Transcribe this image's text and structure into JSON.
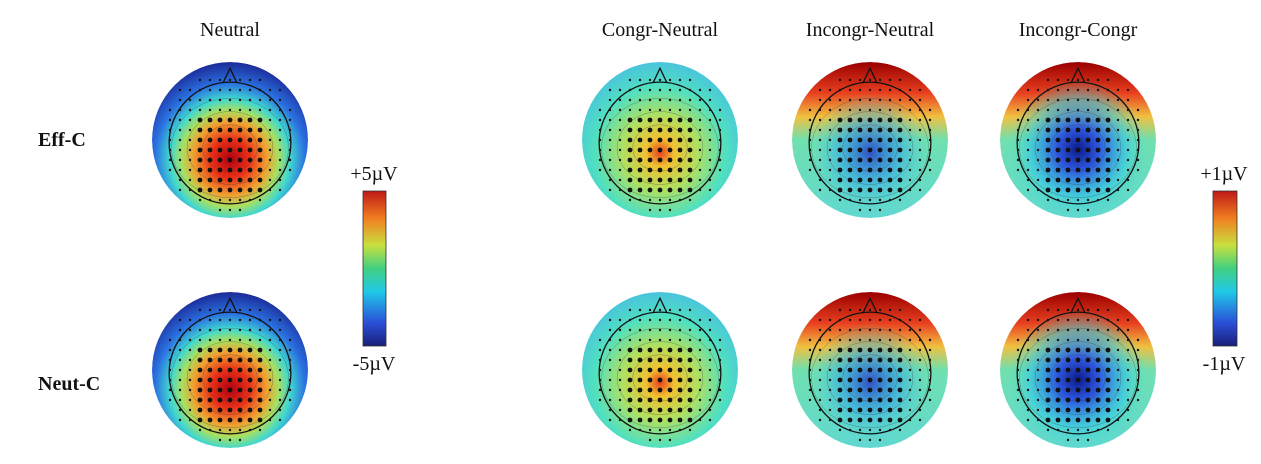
{
  "figure": {
    "column_titles": [
      "Neutral",
      "Congr-Neutral",
      "Incongr-Neutral",
      "Incongr-Congr"
    ],
    "row_labels": [
      "Eff-C",
      "Neut-C"
    ],
    "colorbars": [
      {
        "max_label": "+5µV",
        "min_label": "-5µV"
      },
      {
        "max_label": "+1µV",
        "min_label": "-1µV"
      }
    ]
  }
}
